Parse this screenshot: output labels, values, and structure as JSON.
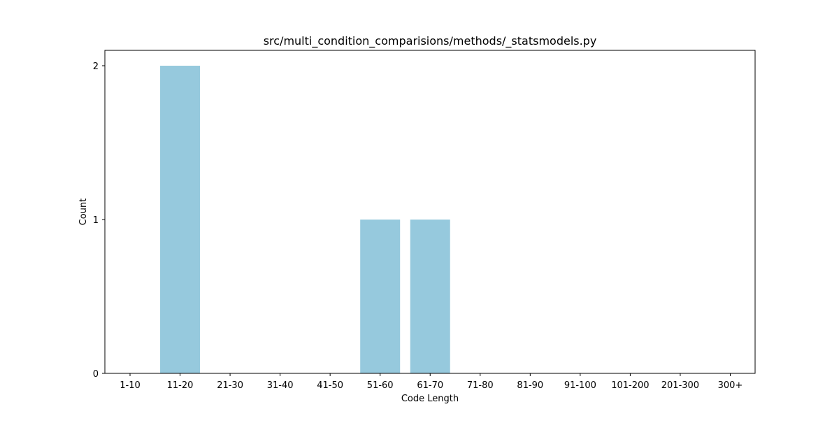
{
  "chart_data": {
    "type": "bar",
    "title": "src/multi_condition_comparisions/methods/_statsmodels.py",
    "xlabel": "Code Length",
    "ylabel": "Count",
    "categories": [
      "1-10",
      "11-20",
      "21-30",
      "31-40",
      "41-50",
      "51-60",
      "61-70",
      "71-80",
      "81-90",
      "91-100",
      "101-200",
      "201-300",
      "300+"
    ],
    "values": [
      0,
      2,
      0,
      0,
      0,
      1,
      1,
      0,
      0,
      0,
      0,
      0,
      0
    ],
    "ylim": [
      0,
      2.1
    ],
    "yticks": [
      0,
      1,
      2
    ],
    "grid": false,
    "bar_color": "#96c9dd"
  }
}
